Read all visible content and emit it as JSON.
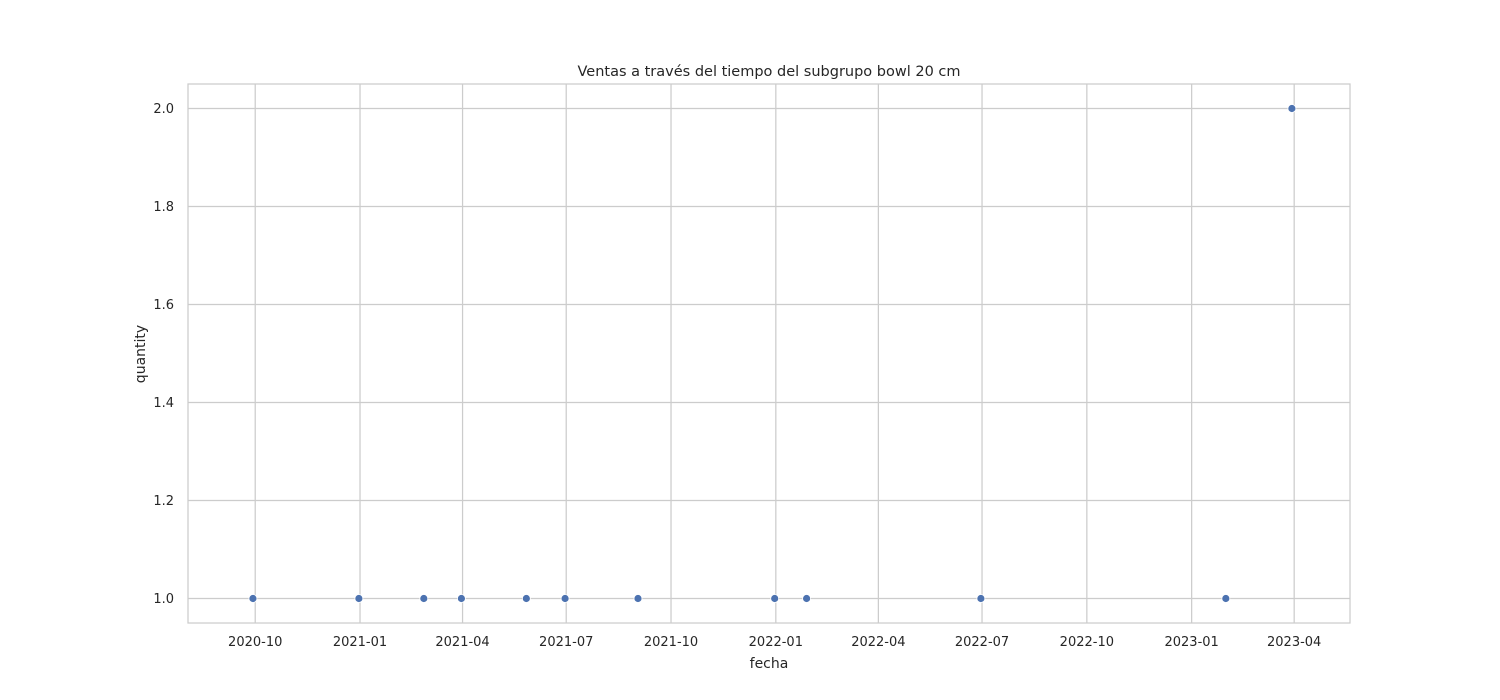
{
  "chart_data": {
    "type": "scatter",
    "title": "Ventas a través del tiempo del subgrupo bowl 20 cm",
    "xlabel": "fecha",
    "ylabel": "quantity",
    "x_tick_labels": [
      "2020-10",
      "2021-01",
      "2021-04",
      "2021-07",
      "2021-10",
      "2022-01",
      "2022-04",
      "2022-07",
      "2022-10",
      "2023-01",
      "2023-04"
    ],
    "y_tick_labels": [
      "1.0",
      "1.2",
      "1.4",
      "1.6",
      "1.8",
      "2.0"
    ],
    "ylim": [
      0.95,
      2.05
    ],
    "xlim": [
      "2020-08-03",
      "2023-05-20"
    ],
    "grid": true,
    "colors": {
      "marker": "#4c72b0",
      "grid": "#cccccc",
      "frame": "#cccccc"
    },
    "points": [
      {
        "x": "2020-09-29",
        "y": 1
      },
      {
        "x": "2020-12-31",
        "y": 1
      },
      {
        "x": "2021-02-26",
        "y": 1
      },
      {
        "x": "2021-03-31",
        "y": 1
      },
      {
        "x": "2021-05-27",
        "y": 1
      },
      {
        "x": "2021-06-30",
        "y": 1
      },
      {
        "x": "2021-09-02",
        "y": 1
      },
      {
        "x": "2021-12-31",
        "y": 1
      },
      {
        "x": "2022-01-28",
        "y": 1
      },
      {
        "x": "2022-06-30",
        "y": 1
      },
      {
        "x": "2023-01-31",
        "y": 1
      },
      {
        "x": "2023-03-30",
        "y": 2
      }
    ]
  }
}
